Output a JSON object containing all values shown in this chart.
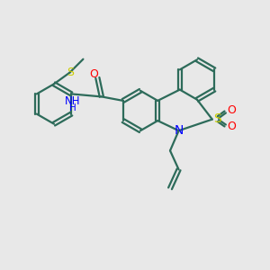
{
  "background_color": "#e8e8e8",
  "bond_color": "#2d6b5a",
  "N_color": "#0000ff",
  "S_color": "#cccc00",
  "O_color": "#ff0000",
  "text_color": "#2d6b5a",
  "line_width": 1.6,
  "figsize": [
    3.0,
    3.0
  ],
  "dpi": 100,
  "xlim": [
    0,
    10
  ],
  "ylim": [
    0,
    10
  ]
}
